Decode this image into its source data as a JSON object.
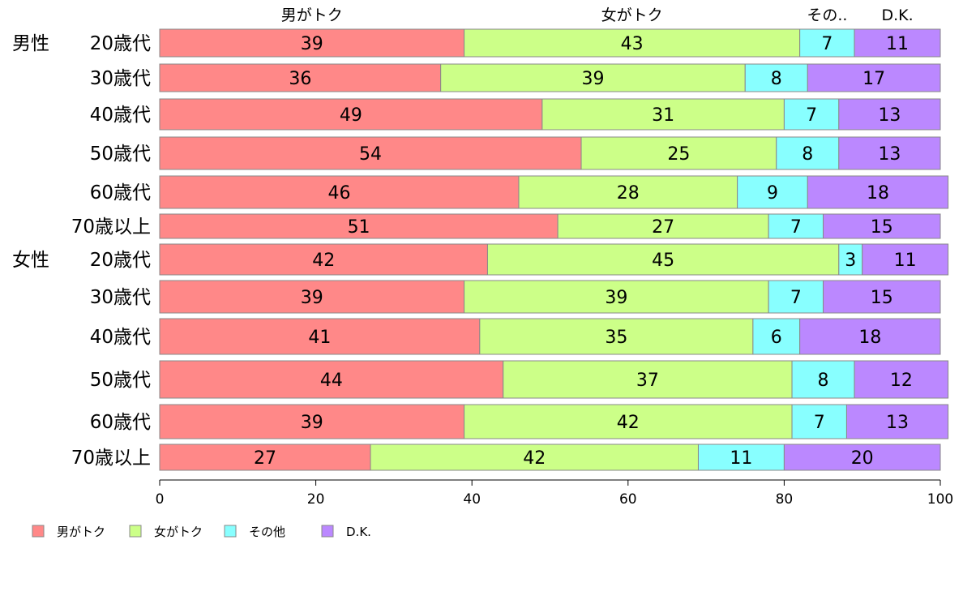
{
  "chart_data": {
    "type": "bar",
    "orientation": "horizontal",
    "stacked": true,
    "xlim": [
      0,
      100
    ],
    "x_ticks": [
      "0",
      "20",
      "40",
      "60",
      "80",
      "100"
    ],
    "column_headers": [
      "男がトク",
      "女がトク",
      "その..",
      "D.K."
    ],
    "groups": [
      {
        "label": "男性",
        "categories": [
          "20歳代",
          "30歳代",
          "40歳代",
          "50歳代",
          "60歳代",
          "70歳以上"
        ]
      },
      {
        "label": "女性",
        "categories": [
          "20歳代",
          "30歳代",
          "40歳代",
          "50歳代",
          "60歳代",
          "70歳以上"
        ]
      }
    ],
    "series": [
      {
        "name": "男がトク",
        "color": "#ff8888",
        "values": [
          39,
          36,
          49,
          54,
          46,
          51,
          42,
          39,
          41,
          44,
          39,
          27
        ]
      },
      {
        "name": "女がトク",
        "color": "#ccff88",
        "values": [
          43,
          39,
          31,
          25,
          28,
          27,
          45,
          39,
          35,
          37,
          42,
          42
        ]
      },
      {
        "name": "その他",
        "color": "#88ffff",
        "values": [
          7,
          8,
          7,
          8,
          9,
          7,
          3,
          7,
          6,
          8,
          7,
          11
        ]
      },
      {
        "name": "D.K.",
        "color": "#bb88ff",
        "values": [
          11,
          17,
          13,
          13,
          18,
          15,
          11,
          15,
          18,
          12,
          13,
          20
        ]
      }
    ],
    "legend_position": "bottom-left"
  }
}
